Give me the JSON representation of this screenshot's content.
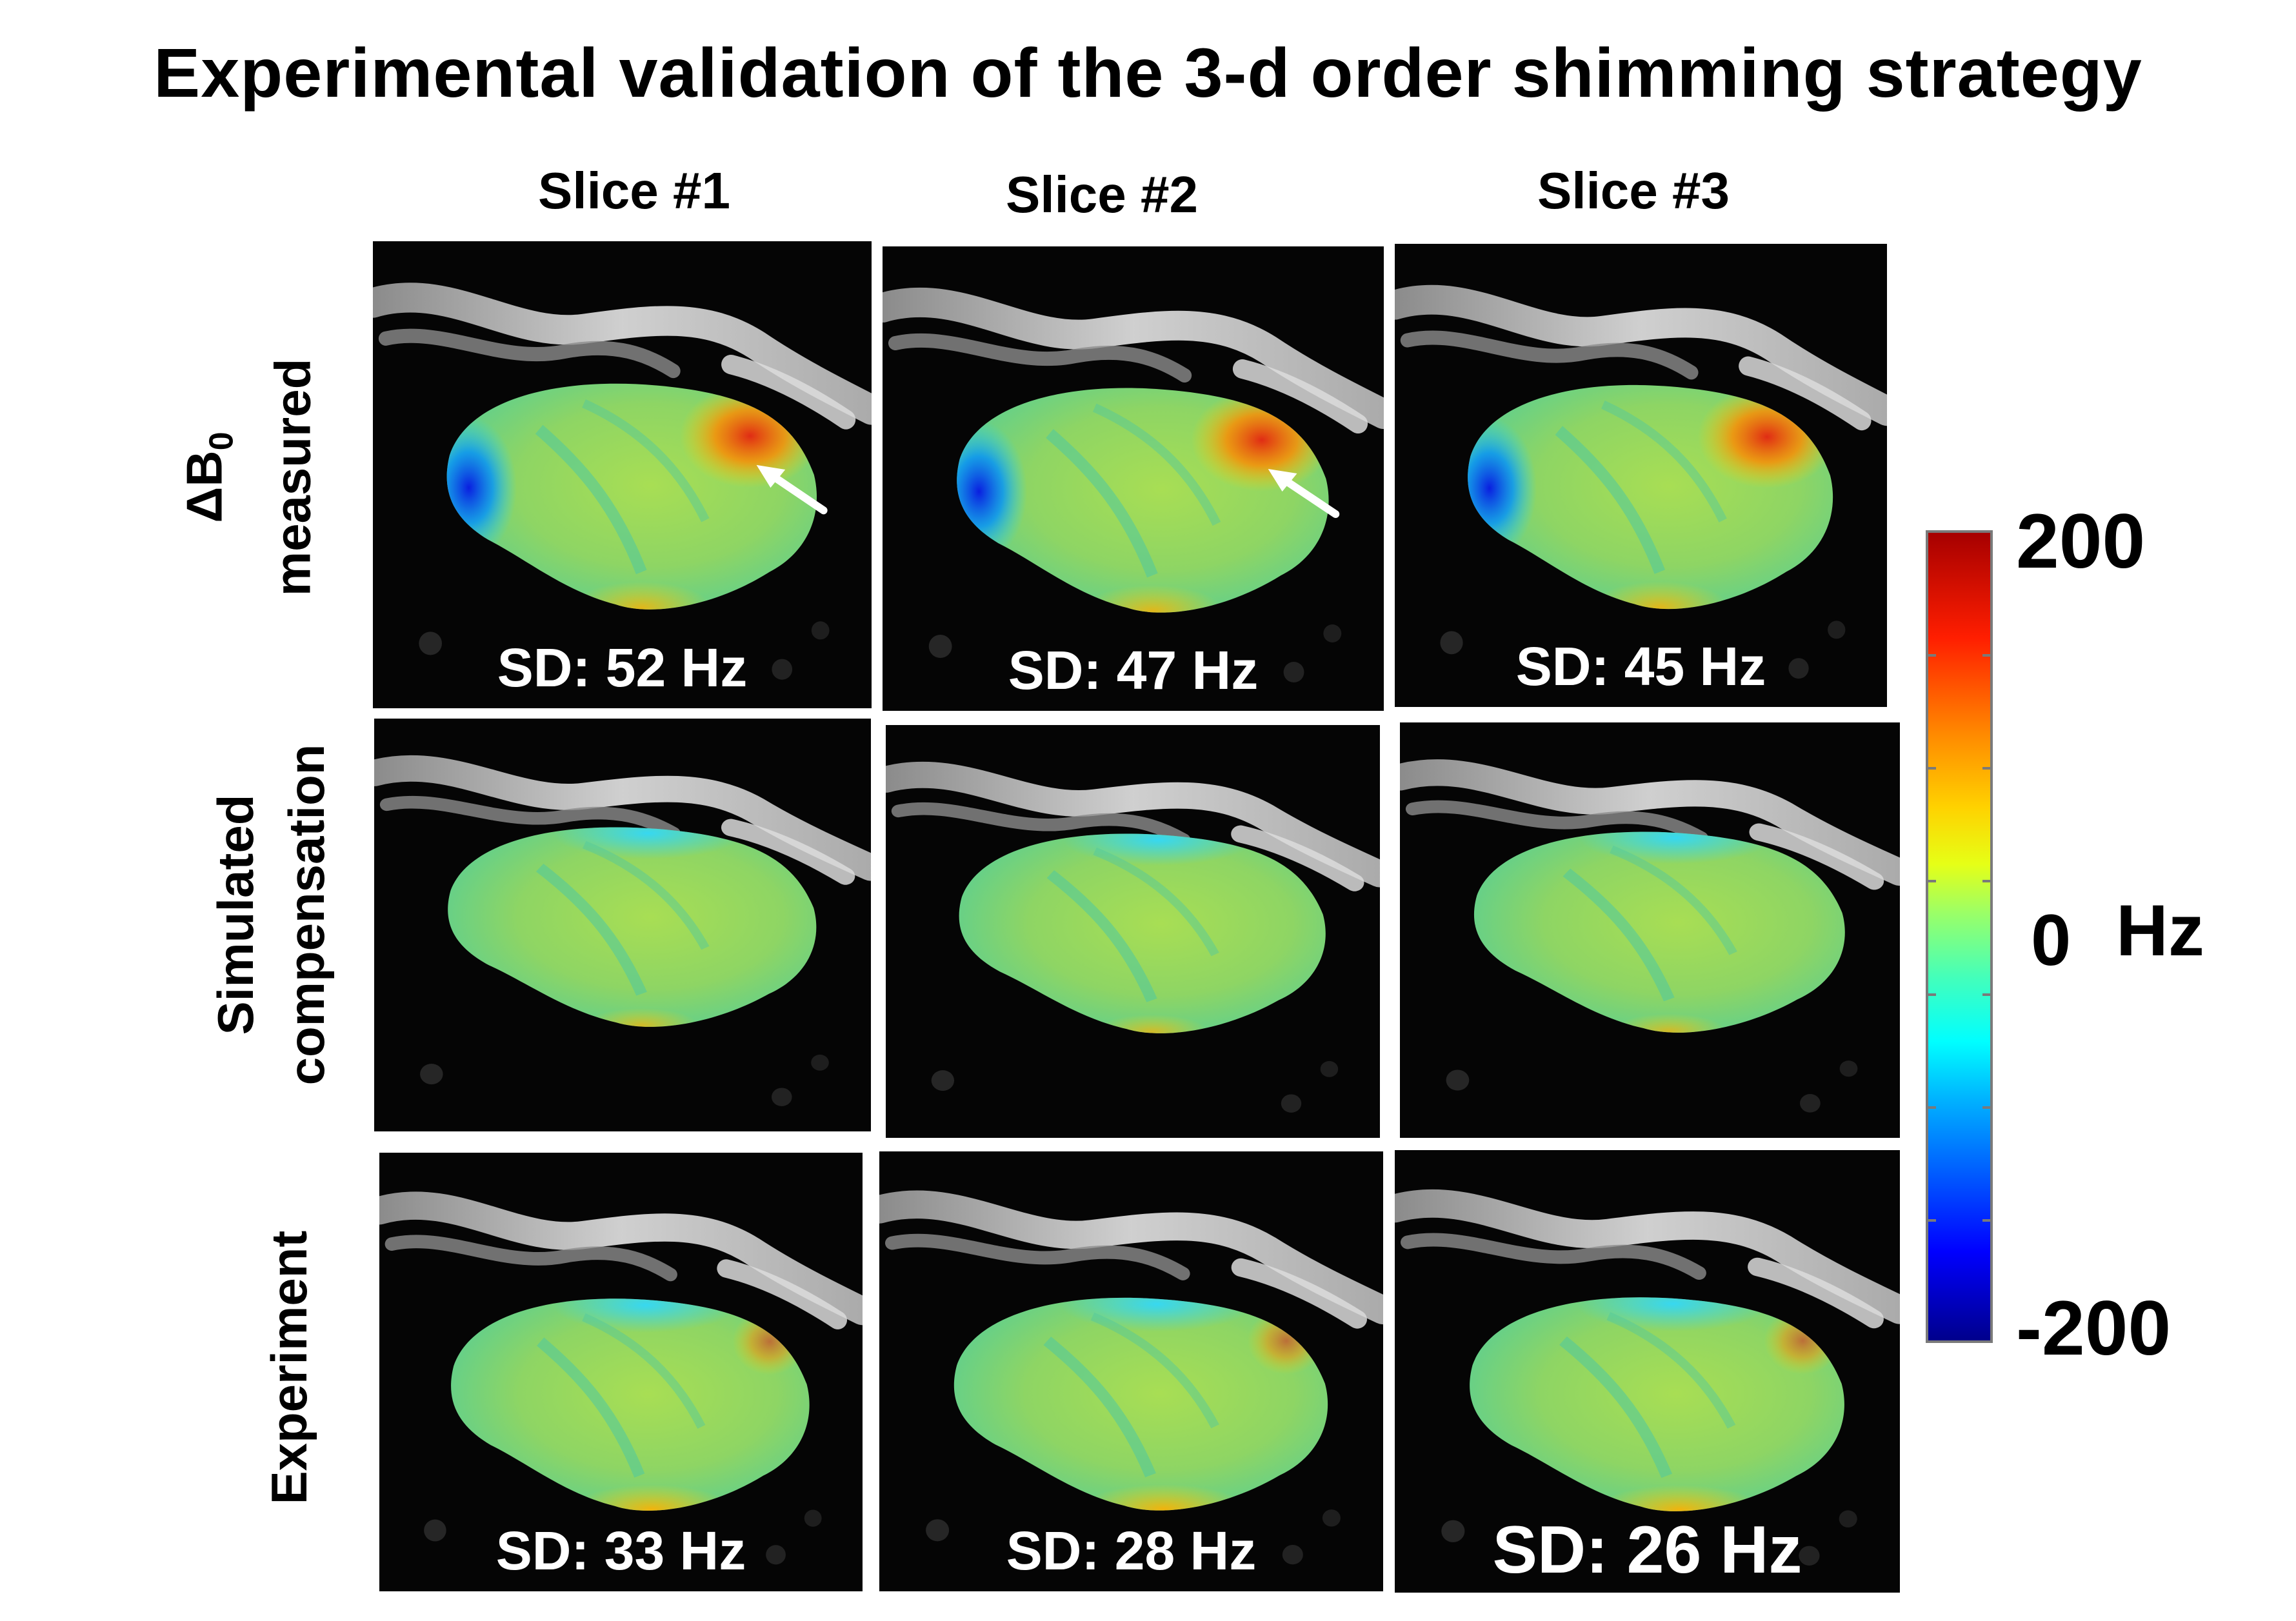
{
  "title": "Experimental validation of the 3-d order shimming strategy",
  "columns": [
    "Slice #1",
    "Slice #2",
    "Slice #3"
  ],
  "rows": {
    "measured": {
      "delta": "ΔB",
      "subscript": "0",
      "word": "measured"
    },
    "simulated": {
      "line1": "Simulated",
      "line2": "compensation"
    },
    "experiment": {
      "line1": "Experiment"
    }
  },
  "sd": {
    "measured": [
      "SD: 52 Hz",
      "SD: 47 Hz",
      "SD: 45 Hz"
    ],
    "experiment": [
      "SD: 33 Hz",
      "SD: 28 Hz",
      "SD: 26 Hz"
    ]
  },
  "colorbar": {
    "max": "200",
    "mid": "0",
    "min": "-200",
    "unit": "Hz",
    "colors": [
      "#00008c",
      "#0000ff",
      "#00ffff",
      "#9cff66",
      "#ffd200",
      "#ff1e00",
      "#a60000"
    ]
  }
}
